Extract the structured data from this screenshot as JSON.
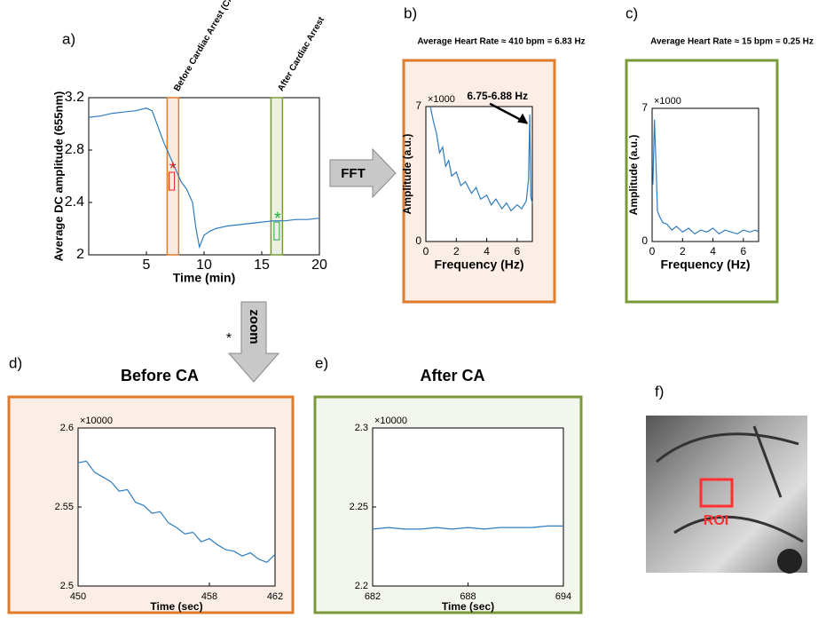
{
  "chart_data": [
    {
      "type": "line",
      "panel": "a)",
      "xlabel": "Time (min)",
      "ylabel": "Average DC amplitude (655nm)",
      "x": [
        0,
        1,
        2,
        3,
        4,
        5,
        5.5,
        6,
        6.5,
        7,
        7.5,
        8,
        8.5,
        9,
        9.3,
        9.6,
        10,
        10.5,
        11,
        12,
        13,
        14,
        15,
        16,
        17,
        18,
        19,
        20
      ],
      "values": [
        3.05,
        3.06,
        3.08,
        3.09,
        3.1,
        3.12,
        3.1,
        2.98,
        2.86,
        2.76,
        2.66,
        2.56,
        2.5,
        2.4,
        2.2,
        2.06,
        2.15,
        2.18,
        2.2,
        2.22,
        2.23,
        2.24,
        2.25,
        2.26,
        2.26,
        2.27,
        2.27,
        2.28
      ],
      "color": "#2f7bbf",
      "xlim": [
        0,
        20
      ],
      "xticks": [
        5,
        10,
        15,
        20
      ],
      "ylim": [
        2,
        3.2
      ],
      "yticks": [
        2,
        2.4,
        2.8,
        3.2
      ],
      "spans": [
        {
          "x": [
            6.8,
            7.8
          ],
          "color": "#e07b2a",
          "label": "Before Cardiac Arrest (CA)"
        },
        {
          "x": [
            15.8,
            16.8
          ],
          "color": "#7a9a3a",
          "label": "After Cardiac Arrest"
        }
      ],
      "markers": [
        {
          "x": 7.2,
          "y": 2.63,
          "label": "*",
          "color": "#e02020"
        },
        {
          "x": 16.3,
          "y": 2.25,
          "label": "*",
          "color": "#20b040"
        }
      ]
    },
    {
      "type": "line",
      "panel": "b)",
      "title": "Average Heart Rate ≈ 410 bpm ≡ 6.83 Hz",
      "xlabel": "Frequency (Hz)",
      "ylabel": "Amplitude (a.u.)",
      "y_multiplier": "×1000",
      "annotation": {
        "text": "6.75-6.88 Hz",
        "x": 6.83,
        "y": 6.6
      },
      "x": [
        0.3,
        0.5,
        0.7,
        0.9,
        1.1,
        1.3,
        1.5,
        1.7,
        2,
        2.3,
        2.6,
        3,
        3.3,
        3.6,
        4,
        4.3,
        4.6,
        5,
        5.3,
        5.6,
        6,
        6.3,
        6.6,
        6.75,
        6.83,
        6.9,
        7
      ],
      "values": [
        7,
        6.2,
        5.6,
        4.6,
        4.9,
        3.9,
        4.2,
        3.4,
        3.6,
        2.9,
        3.1,
        2.5,
        2.8,
        2.2,
        2.4,
        1.9,
        2.2,
        1.7,
        2.0,
        1.6,
        1.9,
        1.7,
        2.1,
        3.2,
        6.6,
        2.3,
        2.0
      ],
      "color": "#2f7bbf",
      "panel_color": "#e07b2a",
      "panel_fill": "#fbeee6",
      "xlim": [
        0,
        7
      ],
      "xticks": [
        0,
        2,
        4,
        6
      ],
      "ylim": [
        0,
        7
      ],
      "yticks": [
        0,
        7
      ]
    },
    {
      "type": "line",
      "panel": "c)",
      "title": "Average Heart Rate ≈ 15 bpm ≡ 0.25 Hz",
      "xlabel": "Frequency (Hz)",
      "ylabel": "Amplitude (a.u.)",
      "y_multiplier": "×1000",
      "x": [
        0.05,
        0.15,
        0.25,
        0.35,
        0.5,
        0.7,
        1,
        1.3,
        1.6,
        2,
        2.4,
        2.8,
        3.2,
        3.6,
        4,
        4.4,
        4.8,
        5.2,
        5.6,
        6,
        6.4,
        6.8,
        7
      ],
      "values": [
        3,
        6.4,
        4.2,
        1.6,
        1.3,
        1.0,
        0.9,
        0.6,
        0.8,
        0.5,
        0.7,
        0.4,
        0.6,
        0.5,
        0.7,
        0.4,
        0.6,
        0.5,
        0.4,
        0.6,
        0.5,
        0.6,
        0.5
      ],
      "color": "#2f7bbf",
      "panel_color": "#7a9a3a",
      "panel_fill": "#ffffff",
      "xlim": [
        0,
        7
      ],
      "xticks": [
        0,
        2,
        4,
        6
      ],
      "ylim": [
        0,
        7
      ],
      "yticks": [
        0,
        7
      ]
    },
    {
      "type": "line",
      "panel": "d)",
      "title": "Before CA",
      "xlabel": "Time (sec)",
      "y_multiplier": "×10000",
      "x": [
        450,
        450.5,
        451,
        451.5,
        452,
        452.5,
        453,
        453.5,
        454,
        454.5,
        455,
        455.5,
        456,
        456.5,
        457,
        457.5,
        458,
        458.5,
        459,
        459.5,
        460,
        460.5,
        461,
        461.5,
        462
      ],
      "values": [
        2.578,
        2.579,
        2.572,
        2.569,
        2.566,
        2.56,
        2.561,
        2.553,
        2.551,
        2.546,
        2.547,
        2.54,
        2.537,
        2.533,
        2.534,
        2.528,
        2.53,
        2.526,
        2.523,
        2.522,
        2.519,
        2.521,
        2.517,
        2.515,
        2.52
      ],
      "color": "#2f7bbf",
      "panel_color": "#e07b2a",
      "panel_fill": "#fbeee6",
      "xlim": [
        450,
        462
      ],
      "xticks": [
        450,
        458,
        462
      ],
      "ylim": [
        2.5,
        2.6
      ],
      "yticks": [
        2.5,
        2.55,
        2.6
      ]
    },
    {
      "type": "line",
      "panel": "e)",
      "title": "After CA",
      "xlabel": "Time (sec)",
      "y_multiplier": "×10000",
      "x": [
        682,
        683,
        684,
        685,
        686,
        687,
        688,
        689,
        690,
        691,
        692,
        693,
        694
      ],
      "values": [
        2.236,
        2.237,
        2.236,
        2.236,
        2.237,
        2.236,
        2.237,
        2.236,
        2.237,
        2.237,
        2.237,
        2.238,
        2.238
      ],
      "color": "#2f7bbf",
      "panel_color": "#7a9a3a",
      "panel_fill": "#f3f6ec",
      "xlim": [
        682,
        694
      ],
      "xticks": [
        682,
        688,
        694
      ],
      "ylim": [
        2.2,
        2.3
      ],
      "yticks": [
        2.2,
        2.25,
        2.3
      ]
    }
  ],
  "figure": {
    "fft_arrow": "FFT",
    "zoom_arrow": "zoom",
    "zoom_marker": "*",
    "image_panel": {
      "panel": "f)",
      "roi": "ROI"
    }
  }
}
